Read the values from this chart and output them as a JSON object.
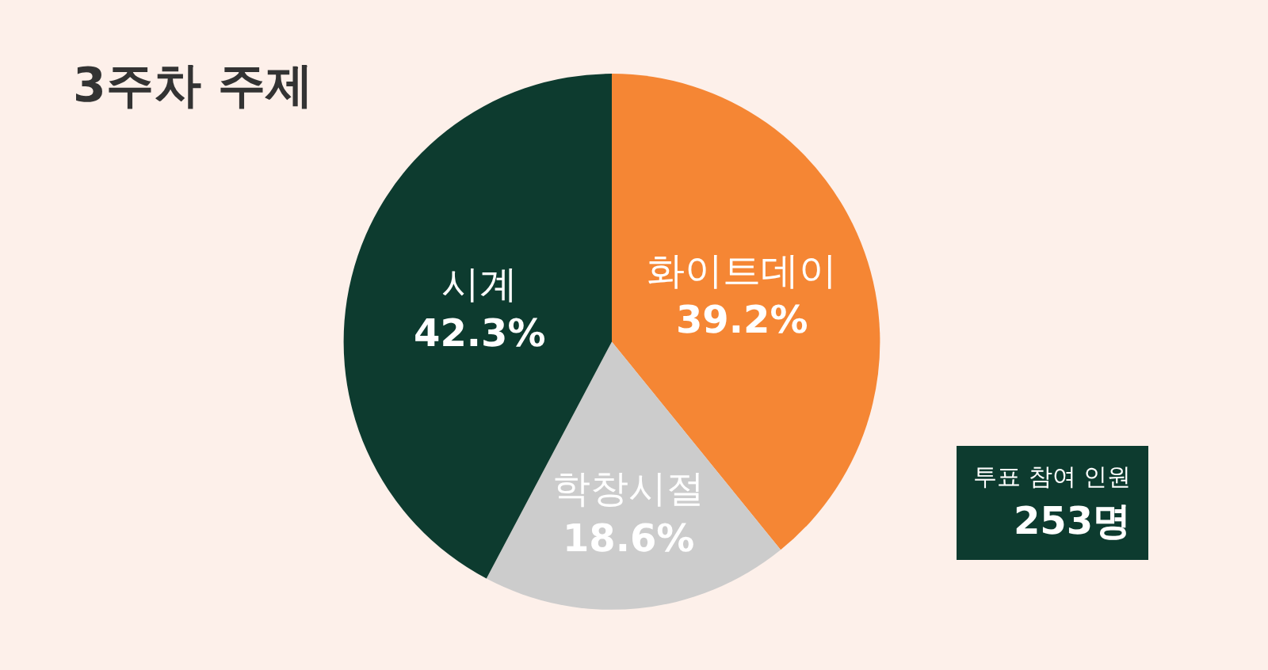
{
  "chart_data": {
    "type": "pie",
    "title": "3주차 주제",
    "categories": [
      "화이트데이",
      "학창시절",
      "시계"
    ],
    "values": [
      39.2,
      18.6,
      42.3
    ],
    "value_labels": [
      "39.2%",
      "18.6%",
      "42.3%"
    ],
    "colors": [
      "#f58634",
      "#cccccc",
      "#0d3b2f"
    ],
    "legend": false,
    "annotations": [
      "투표 참여 인원\n253명"
    ]
  }
}
